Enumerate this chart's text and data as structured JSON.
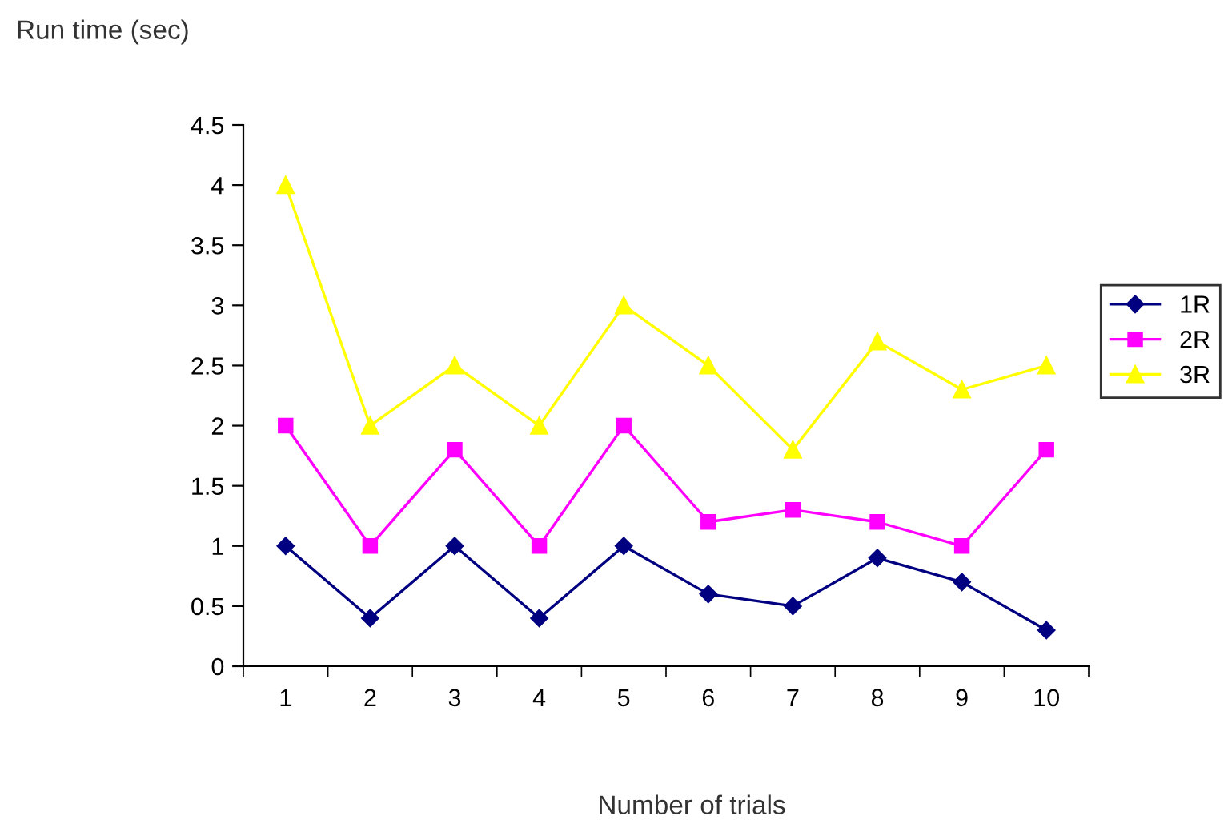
{
  "chart_data": {
    "type": "line",
    "xlabel": "Number of trials",
    "ylabel": "Run time (sec)",
    "categories": [
      "1",
      "2",
      "3",
      "4",
      "5",
      "6",
      "7",
      "8",
      "9",
      "10"
    ],
    "series": [
      {
        "name": "1R",
        "color": "#000080",
        "marker": "diamond",
        "values": [
          1,
          0.4,
          1,
          0.4,
          1,
          0.6,
          0.5,
          0.9,
          0.7,
          0.3
        ]
      },
      {
        "name": "2R",
        "color": "#ff00ff",
        "marker": "square",
        "values": [
          2,
          1,
          1.8,
          1,
          2,
          1.2,
          1.3,
          1.2,
          1.0,
          1.8
        ]
      },
      {
        "name": "3R",
        "color": "#ffff00",
        "marker": "triangle",
        "values": [
          4,
          2,
          2.5,
          2,
          3,
          2.5,
          1.8,
          2.7,
          2.3,
          2.5
        ]
      }
    ],
    "ylim": [
      0,
      4.5
    ],
    "yticks": [
      0,
      0.5,
      1,
      1.5,
      2,
      2.5,
      3,
      3.5,
      4,
      4.5
    ],
    "grid": false,
    "legend": "right"
  }
}
